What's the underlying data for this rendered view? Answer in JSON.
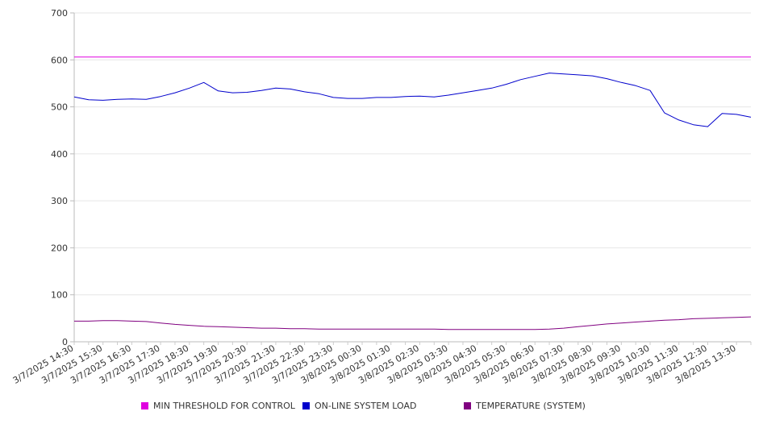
{
  "chart_data": {
    "type": "line",
    "title": "",
    "xlabel": "",
    "ylabel": "",
    "ylim": [
      0,
      700
    ],
    "y_ticks": [
      0,
      100,
      200,
      300,
      400,
      500,
      600,
      700
    ],
    "grid": "horizontal",
    "legend_position": "bottom",
    "x_tick_labels": [
      "3/7/2025 14:30",
      "3/7/2025 15:30",
      "3/7/2025 16:30",
      "3/7/2025 17:30",
      "3/7/2025 18:30",
      "3/7/2025 19:30",
      "3/7/2025 20:30",
      "3/7/2025 21:30",
      "3/7/2025 22:30",
      "3/7/2025 23:30",
      "3/8/2025 00:30",
      "3/8/2025 01:30",
      "3/8/2025 02:30",
      "3/8/2025 03:30",
      "3/8/2025 04:30",
      "3/8/2025 05:30",
      "3/8/2025 06:30",
      "3/8/2025 07:30",
      "3/8/2025 08:30",
      "3/8/2025 09:30",
      "3/8/2025 10:30",
      "3/8/2025 11:30",
      "3/8/2025 12:30",
      "3/8/2025 13:30"
    ],
    "x": [
      "3/7/2025 14:30",
      "3/7/2025 15:00",
      "3/7/2025 15:30",
      "3/7/2025 16:00",
      "3/7/2025 16:30",
      "3/7/2025 17:00",
      "3/7/2025 17:30",
      "3/7/2025 18:00",
      "3/7/2025 18:30",
      "3/7/2025 19:00",
      "3/7/2025 19:30",
      "3/7/2025 20:00",
      "3/7/2025 20:30",
      "3/7/2025 21:00",
      "3/7/2025 21:30",
      "3/7/2025 22:00",
      "3/7/2025 22:30",
      "3/7/2025 23:00",
      "3/7/2025 23:30",
      "3/8/2025 00:00",
      "3/8/2025 00:30",
      "3/8/2025 01:00",
      "3/8/2025 01:30",
      "3/8/2025 02:00",
      "3/8/2025 02:30",
      "3/8/2025 03:00",
      "3/8/2025 03:30",
      "3/8/2025 04:00",
      "3/8/2025 04:30",
      "3/8/2025 05:00",
      "3/8/2025 05:30",
      "3/8/2025 06:00",
      "3/8/2025 06:30",
      "3/8/2025 07:00",
      "3/8/2025 07:30",
      "3/8/2025 08:00",
      "3/8/2025 08:30",
      "3/8/2025 09:00",
      "3/8/2025 09:30",
      "3/8/2025 10:00",
      "3/8/2025 10:30",
      "3/8/2025 11:00",
      "3/8/2025 11:30",
      "3/8/2025 12:00",
      "3/8/2025 12:30",
      "3/8/2025 13:00",
      "3/8/2025 13:30",
      "3/8/2025 14:00"
    ],
    "series": [
      {
        "name": "MIN THRESHOLD FOR CONTROL",
        "color": "#e000e0",
        "values": [
          606,
          606,
          606,
          606,
          606,
          606,
          606,
          606,
          606,
          606,
          606,
          606,
          606,
          606,
          606,
          606,
          606,
          606,
          606,
          606,
          606,
          606,
          606,
          606,
          606,
          606,
          606,
          606,
          606,
          606,
          606,
          606,
          606,
          606,
          606,
          606,
          606,
          606,
          606,
          606,
          606,
          606,
          606,
          606,
          606,
          606,
          606,
          606
        ]
      },
      {
        "name": "ON-LINE SYSTEM LOAD",
        "color": "#0000cc",
        "values": [
          521,
          515,
          514,
          516,
          517,
          516,
          522,
          530,
          540,
          552,
          534,
          530,
          531,
          535,
          540,
          538,
          532,
          528,
          520,
          518,
          518,
          520,
          520,
          522,
          523,
          521,
          525,
          530,
          535,
          540,
          548,
          558,
          565,
          572,
          570,
          568,
          566,
          560,
          552,
          545,
          535,
          487,
          472,
          462,
          458,
          486,
          484,
          478
        ]
      },
      {
        "name": "TEMPERATURE (SYSTEM)",
        "color": "#800080",
        "values": [
          44,
          44,
          45,
          45,
          44,
          43,
          40,
          37,
          35,
          33,
          32,
          31,
          30,
          29,
          29,
          28,
          28,
          27,
          27,
          27,
          27,
          27,
          27,
          27,
          27,
          27,
          26,
          26,
          26,
          26,
          26,
          26,
          26,
          27,
          29,
          32,
          35,
          38,
          40,
          42,
          44,
          46,
          47,
          49,
          50,
          51,
          52,
          53
        ]
      }
    ]
  }
}
